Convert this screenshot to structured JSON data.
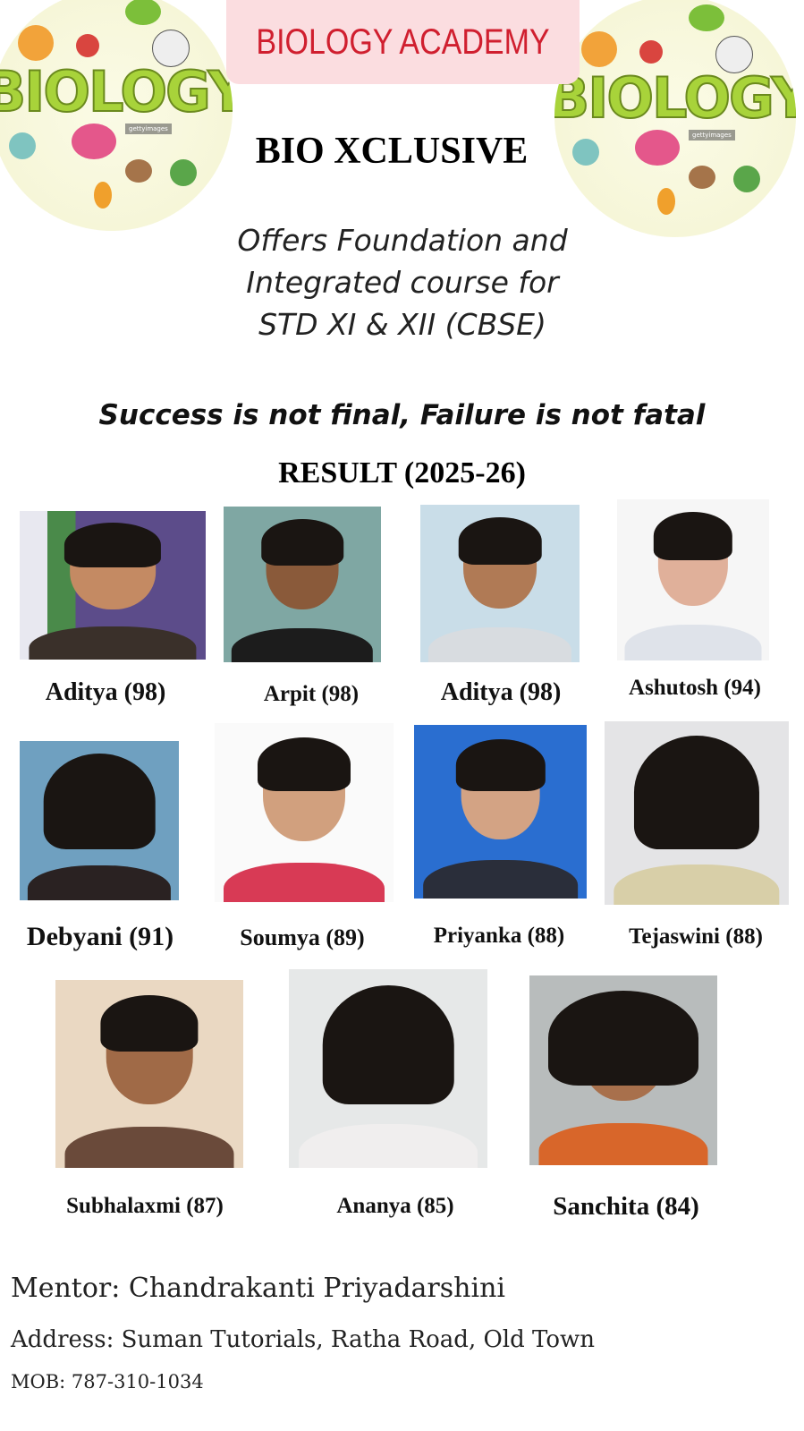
{
  "header": {
    "logo_text": "BIOLOGY",
    "logo_watermark": "gettyimages",
    "banner_title": "BIOLOGY ACADEMY",
    "brand": "BIO XCLUSIVE",
    "offer_lines": [
      "Offers Foundation and",
      "Integrated course for",
      "STD XI & XII (CBSE)"
    ],
    "colors": {
      "banner_bg": "#fbdde0",
      "banner_text": "#d01f2f",
      "logo_green": "#a8d33a"
    }
  },
  "motto": "Success is not final, Failure is not fatal",
  "result_title": "RESULT (2025-26)",
  "students": [
    {
      "label": "Aditya (98)"
    },
    {
      "label": "Arpit (98)"
    },
    {
      "label": "Aditya (98)"
    },
    {
      "label": "Ashutosh (94)"
    },
    {
      "label": "Debyani (91)"
    },
    {
      "label": "Soumya (89)"
    },
    {
      "label": "Priyanka (88)"
    },
    {
      "label": "Tejaswini (88)"
    },
    {
      "label": "Subhalaxmi (87)"
    },
    {
      "label": "Ananya (85)"
    },
    {
      "label": "Sanchita (84)"
    }
  ],
  "footer": {
    "mentor": "Mentor: Chandrakanti Priyadarshini",
    "address": "Address: Suman Tutorials, Ratha Road, Old Town",
    "mobile": "MOB: 787-310-1034"
  }
}
